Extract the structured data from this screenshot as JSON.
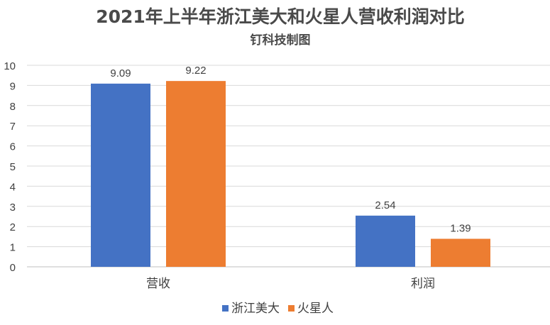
{
  "chart_data": {
    "type": "bar",
    "title": "2021年上半年浙江美大和火星人营收利润对比",
    "subtitle": "钉科技制图",
    "categories": [
      "营收",
      "利润"
    ],
    "series": [
      {
        "name": "浙江美大",
        "values": [
          9.09,
          2.54
        ],
        "color": "#4472C4"
      },
      {
        "name": "火星人",
        "values": [
          9.22,
          1.39
        ],
        "color": "#ED7D31"
      }
    ],
    "ylim": [
      0,
      10
    ],
    "yticks": [
      0,
      1,
      2,
      3,
      4,
      5,
      6,
      7,
      8,
      9,
      10
    ],
    "grid": true,
    "legend_position": "bottom",
    "data_labels": true
  }
}
